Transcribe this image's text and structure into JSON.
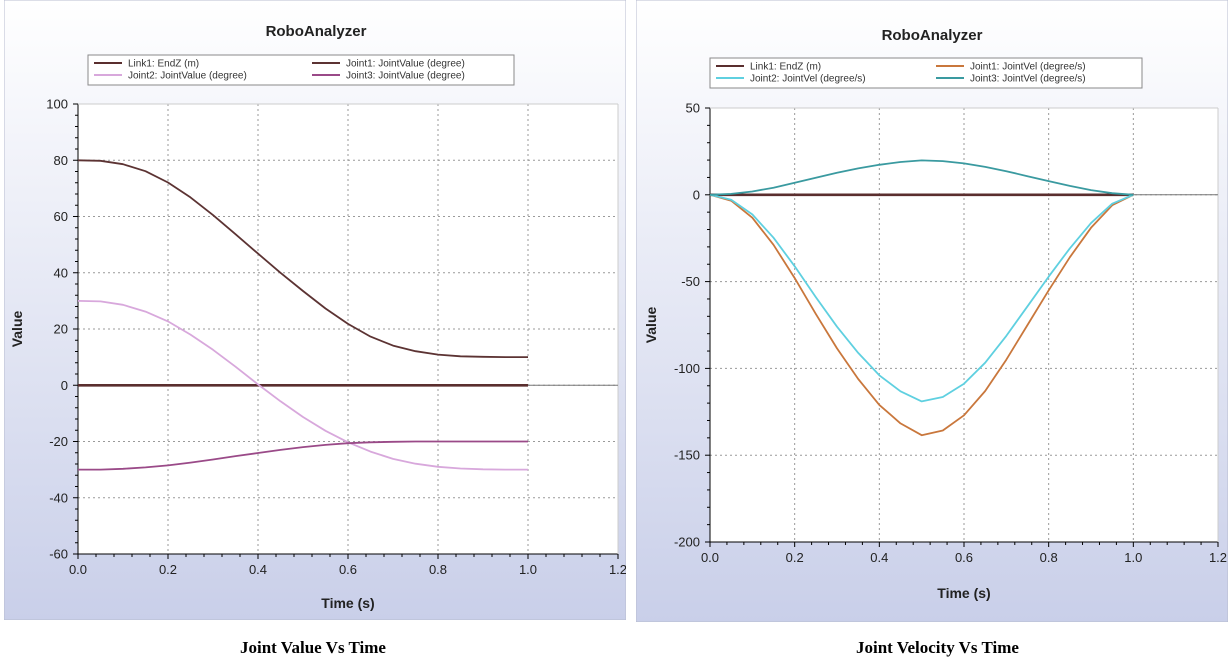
{
  "colors": {
    "panel_bg_top": "#ffffff",
    "panel_bg_bottom": "#c9cfe9",
    "plot_bg": "#ffffff",
    "grid": "#9a9a9a",
    "axis": "#000000",
    "end_z": "#5a2e2e",
    "joint1_value": "#5c3333",
    "joint2_value": "#d8a8dc",
    "joint3_value": "#9a4a88",
    "joint1_vel": "#c9773c",
    "joint2_vel": "#5fd0e0",
    "joint3_vel": "#3a9aa0"
  },
  "captions": {
    "left": "Joint Value Vs Time",
    "right": "Joint Velocity Vs Time"
  },
  "chart_data": [
    {
      "type": "line",
      "title": "RoboAnalyzer",
      "xlabel": "Time (s)",
      "ylabel": "Value",
      "xlim": [
        0.0,
        1.2
      ],
      "ylim": [
        -60,
        100
      ],
      "xticks": [
        "0.0",
        "0.2",
        "0.4",
        "0.6",
        "0.8",
        "1.0",
        "1.2"
      ],
      "yticks": [
        "100",
        "80",
        "60",
        "40",
        "20",
        "0",
        "-20",
        "-40",
        "-60"
      ],
      "grid": true,
      "legend_position": "top",
      "x": [
        0.0,
        0.05,
        0.1,
        0.15,
        0.2,
        0.25,
        0.3,
        0.35,
        0.4,
        0.45,
        0.5,
        0.55,
        0.6,
        0.65,
        0.7,
        0.75,
        0.8,
        0.85,
        0.9,
        0.95,
        1.0
      ],
      "series": [
        {
          "name": "Link1: EndZ (m)",
          "color": "#5a2e2e",
          "values": [
            0,
            0,
            0,
            0,
            0,
            0,
            0,
            0,
            0,
            0,
            0,
            0,
            0,
            0,
            0,
            0,
            0,
            0,
            0,
            0,
            0
          ]
        },
        {
          "name": "Joint1: JointValue (degree)",
          "color": "#5c3333",
          "values": [
            80.0,
            79.8,
            78.6,
            76.1,
            72.1,
            66.8,
            60.5,
            53.7,
            46.8,
            40.0,
            33.5,
            27.3,
            21.8,
            17.3,
            14.1,
            12.1,
            10.9,
            10.3,
            10.1,
            10.0,
            10.0
          ]
        },
        {
          "name": "Joint2: JointValue (degree)",
          "color": "#d8a8dc",
          "values": [
            30.0,
            29.8,
            28.6,
            26.2,
            22.7,
            18.0,
            12.6,
            6.6,
            0.3,
            -5.7,
            -11.3,
            -16.2,
            -20.3,
            -23.6,
            -26.2,
            -27.9,
            -29.0,
            -29.6,
            -29.9,
            -30.0,
            -30.0
          ]
        },
        {
          "name": "Joint3: JointValue (degree)",
          "color": "#9a4a88",
          "values": [
            -30.0,
            -30.0,
            -29.7,
            -29.2,
            -28.5,
            -27.5,
            -26.4,
            -25.2,
            -24.1,
            -23.0,
            -22.0,
            -21.2,
            -20.6,
            -20.3,
            -20.1,
            -20.0,
            -20.0,
            -20.0,
            -20.0,
            -20.0,
            -20.0
          ]
        }
      ]
    },
    {
      "type": "line",
      "title": "RoboAnalyzer",
      "xlabel": "Time (s)",
      "ylabel": "Value",
      "xlim": [
        0.0,
        1.2
      ],
      "ylim": [
        -200,
        50
      ],
      "xticks": [
        "0.0",
        "0.2",
        "0.4",
        "0.6",
        "0.8",
        "1.0",
        "1.2"
      ],
      "yticks": [
        "50",
        "0",
        "-50",
        "-100",
        "-150",
        "-200"
      ],
      "grid": true,
      "legend_position": "top",
      "x": [
        0.0,
        0.05,
        0.1,
        0.15,
        0.2,
        0.25,
        0.3,
        0.35,
        0.4,
        0.45,
        0.5,
        0.55,
        0.6,
        0.65,
        0.7,
        0.75,
        0.8,
        0.85,
        0.9,
        0.95,
        1.0
      ],
      "series": [
        {
          "name": "Link1: EndZ (m)",
          "color": "#5a2e2e",
          "values": [
            0,
            0,
            0,
            0,
            0,
            0,
            0,
            0,
            0,
            0,
            0,
            0,
            0,
            0,
            0,
            0,
            0,
            0,
            0,
            0,
            0
          ]
        },
        {
          "name": "Joint1: JointVel (degree/s)",
          "color": "#c9773c",
          "values": [
            0,
            -3.4,
            -13.2,
            -28.8,
            -48.0,
            -68.6,
            -88.5,
            -106.1,
            -121.0,
            -131.7,
            -138.5,
            -135.8,
            -127.0,
            -113.0,
            -95.0,
            -75.0,
            -55.0,
            -36.0,
            -19.0,
            -6.0,
            0
          ]
        },
        {
          "name": "Joint2: JointVel (degree/s)",
          "color": "#5fd0e0",
          "values": [
            0,
            -2.9,
            -11.3,
            -24.7,
            -41.2,
            -58.9,
            -76.0,
            -91.1,
            -104.0,
            -113.2,
            -119.0,
            -116.5,
            -108.8,
            -96.7,
            -81.3,
            -64.2,
            -47.1,
            -30.9,
            -16.3,
            -5.1,
            0
          ]
        },
        {
          "name": "Joint3: JointVel (degree/s)",
          "color": "#3a9aa0",
          "values": [
            0,
            0.5,
            1.9,
            4.1,
            6.9,
            9.8,
            12.7,
            15.2,
            17.3,
            18.9,
            19.8,
            19.4,
            18.1,
            16.1,
            13.6,
            10.7,
            7.9,
            5.1,
            2.7,
            0.9,
            0
          ]
        }
      ]
    }
  ]
}
